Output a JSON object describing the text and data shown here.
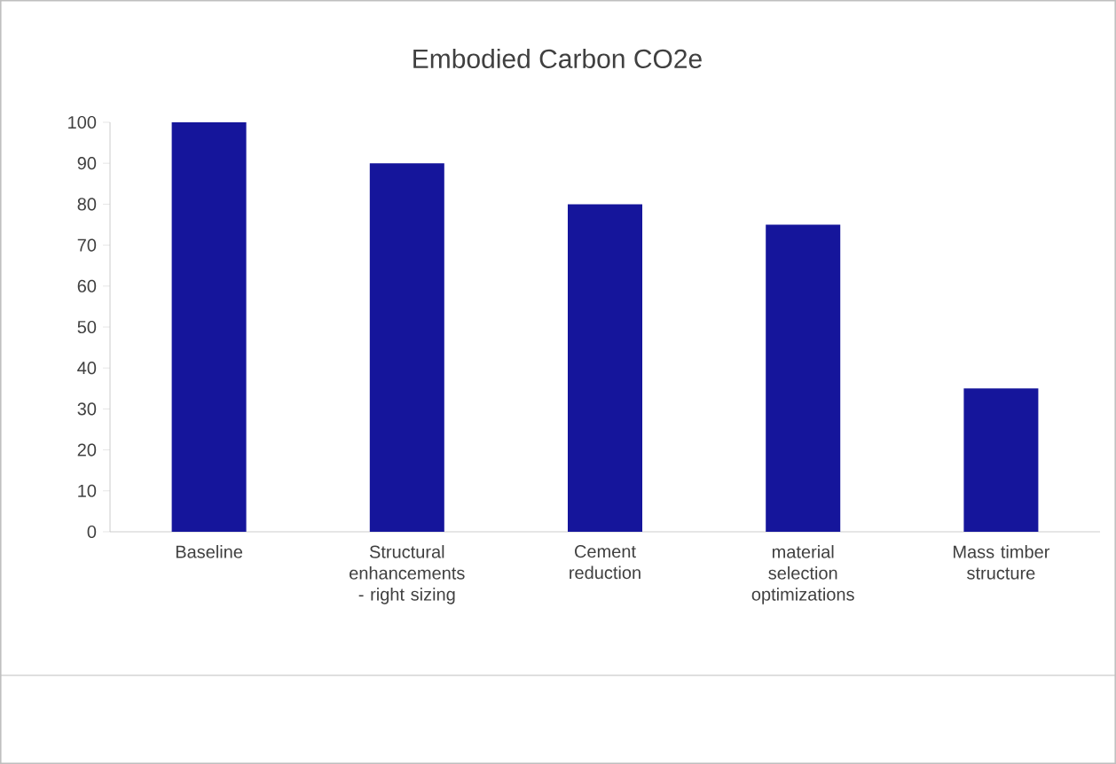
{
  "chart_data": {
    "type": "bar",
    "title": "Embodied Carbon CO2e",
    "categories": [
      "Baseline",
      "Structural enhancements - right sizing",
      "Cement reduction",
      "material selection optimizations",
      "Mass timber structure"
    ],
    "values": [
      100,
      90,
      80,
      75,
      35
    ],
    "color": "#15159b",
    "ylim": [
      0,
      100
    ],
    "yticks": [
      0,
      10,
      20,
      30,
      40,
      50,
      60,
      70,
      80,
      90,
      100
    ],
    "grid": false
  }
}
